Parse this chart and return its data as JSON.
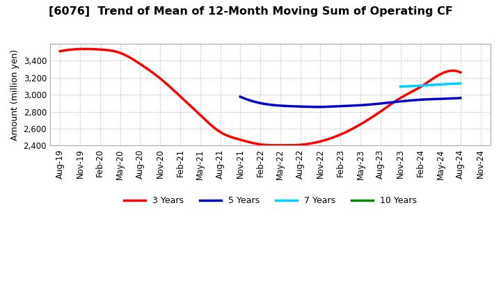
{
  "title": "[6076]  Trend of Mean of 12-Month Moving Sum of Operating CF",
  "ylabel": "Amount (million yen)",
  "ylim": [
    2400,
    3600
  ],
  "yticks": [
    2400,
    2600,
    2800,
    3000,
    3200,
    3400
  ],
  "background_color": "#ffffff",
  "grid_color": "#aaaaaa",
  "x_labels": [
    "Aug-19",
    "Nov-19",
    "Feb-20",
    "May-20",
    "Aug-20",
    "Nov-20",
    "Feb-21",
    "May-21",
    "Aug-21",
    "Nov-21",
    "Feb-22",
    "May-22",
    "Aug-22",
    "Nov-22",
    "Feb-23",
    "May-23",
    "Aug-23",
    "Nov-23",
    "Feb-24",
    "May-24",
    "Aug-24",
    "Nov-24"
  ],
  "series": {
    "3 Years": {
      "color": "#ff0000",
      "linewidth": 2.5,
      "points": [
        [
          0,
          3510
        ],
        [
          1,
          3535
        ],
        [
          2,
          3530
        ],
        [
          3,
          3490
        ],
        [
          4,
          3360
        ],
        [
          5,
          3190
        ],
        [
          6,
          2980
        ],
        [
          7,
          2760
        ],
        [
          8,
          2560
        ],
        [
          9,
          2470
        ],
        [
          10,
          2415
        ],
        [
          11,
          2405
        ],
        [
          12,
          2410
        ],
        [
          13,
          2450
        ],
        [
          14,
          2530
        ],
        [
          15,
          2650
        ],
        [
          16,
          2800
        ],
        [
          17,
          2960
        ],
        [
          18,
          3090
        ],
        [
          19,
          3240
        ],
        [
          20,
          3260
        ]
      ]
    },
    "5 Years": {
      "color": "#0000cc",
      "linewidth": 2.5,
      "points": [
        [
          9,
          2975
        ],
        [
          10,
          2900
        ],
        [
          11,
          2870
        ],
        [
          12,
          2860
        ],
        [
          13,
          2855
        ],
        [
          14,
          2865
        ],
        [
          15,
          2875
        ],
        [
          16,
          2895
        ],
        [
          17,
          2920
        ],
        [
          18,
          2940
        ],
        [
          19,
          2950
        ],
        [
          20,
          2960
        ]
      ]
    },
    "7 Years": {
      "color": "#00ccff",
      "linewidth": 2.5,
      "points": [
        [
          17,
          3095
        ],
        [
          18,
          3105
        ],
        [
          19,
          3120
        ],
        [
          20,
          3130
        ]
      ]
    },
    "10 Years": {
      "color": "#008800",
      "linewidth": 2.5,
      "points": []
    }
  },
  "legend": {
    "entries": [
      "3 Years",
      "5 Years",
      "7 Years",
      "10 Years"
    ],
    "colors": [
      "#ff0000",
      "#0000cc",
      "#00ccff",
      "#008800"
    ]
  }
}
